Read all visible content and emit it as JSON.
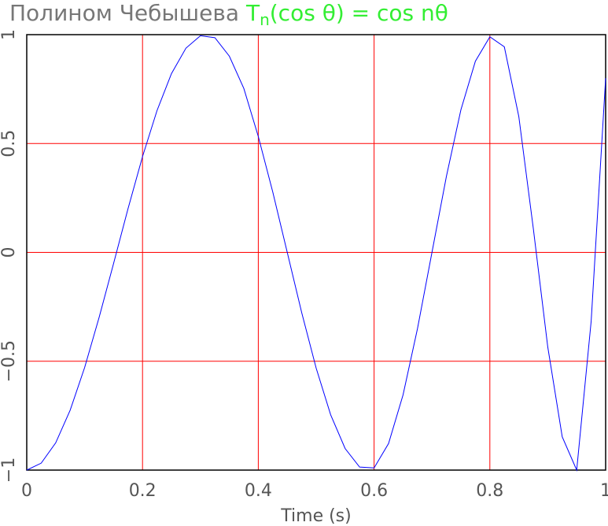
{
  "chart_data": {
    "type": "line",
    "title": "Полином Чебышева ",
    "title_formula": {
      "base": "T",
      "subscript": "n",
      "rest": "(cos θ) = cos nθ"
    },
    "xlabel": "Time (s)",
    "x": [
      0,
      0.025,
      0.05,
      0.075,
      0.1,
      0.125,
      0.15,
      0.175,
      0.2,
      0.225,
      0.25,
      0.275,
      0.3,
      0.325,
      0.35,
      0.375,
      0.4,
      0.425,
      0.45,
      0.475,
      0.5,
      0.525,
      0.55,
      0.575,
      0.6,
      0.625,
      0.65,
      0.675,
      0.7,
      0.725,
      0.75,
      0.775,
      0.8,
      0.825,
      0.85,
      0.875,
      0.9,
      0.925,
      0.95,
      0.975,
      1
    ],
    "series": [
      {
        "color": "#0000ff",
        "values": [
          -1,
          -0.968,
          -0.875,
          -0.725,
          -0.529,
          -0.299,
          -0.051,
          0.201,
          0.44,
          0.651,
          0.821,
          0.938,
          0.995,
          0.986,
          0.901,
          0.753,
          0.532,
          0.277,
          0,
          -0.277,
          -0.532,
          -0.746,
          -0.901,
          -0.986,
          -0.99,
          -0.878,
          -0.655,
          -0.35,
          0,
          0.35,
          0.655,
          0.878,
          0.99,
          0.944,
          0.624,
          0.111,
          -0.434,
          -0.847,
          -1,
          -0.316,
          0.8
        ]
      }
    ],
    "xlim": [
      0,
      1
    ],
    "ylim": [
      -1,
      1
    ],
    "xticks": [
      0,
      0.2,
      0.4,
      0.6,
      0.8,
      1
    ],
    "yticks": [
      {
        "value": -1,
        "label": "−1"
      },
      {
        "value": -0.5,
        "label": "−0.5"
      },
      0,
      0.5,
      1
    ],
    "grid": true,
    "grid_color": "#ff0000"
  }
}
